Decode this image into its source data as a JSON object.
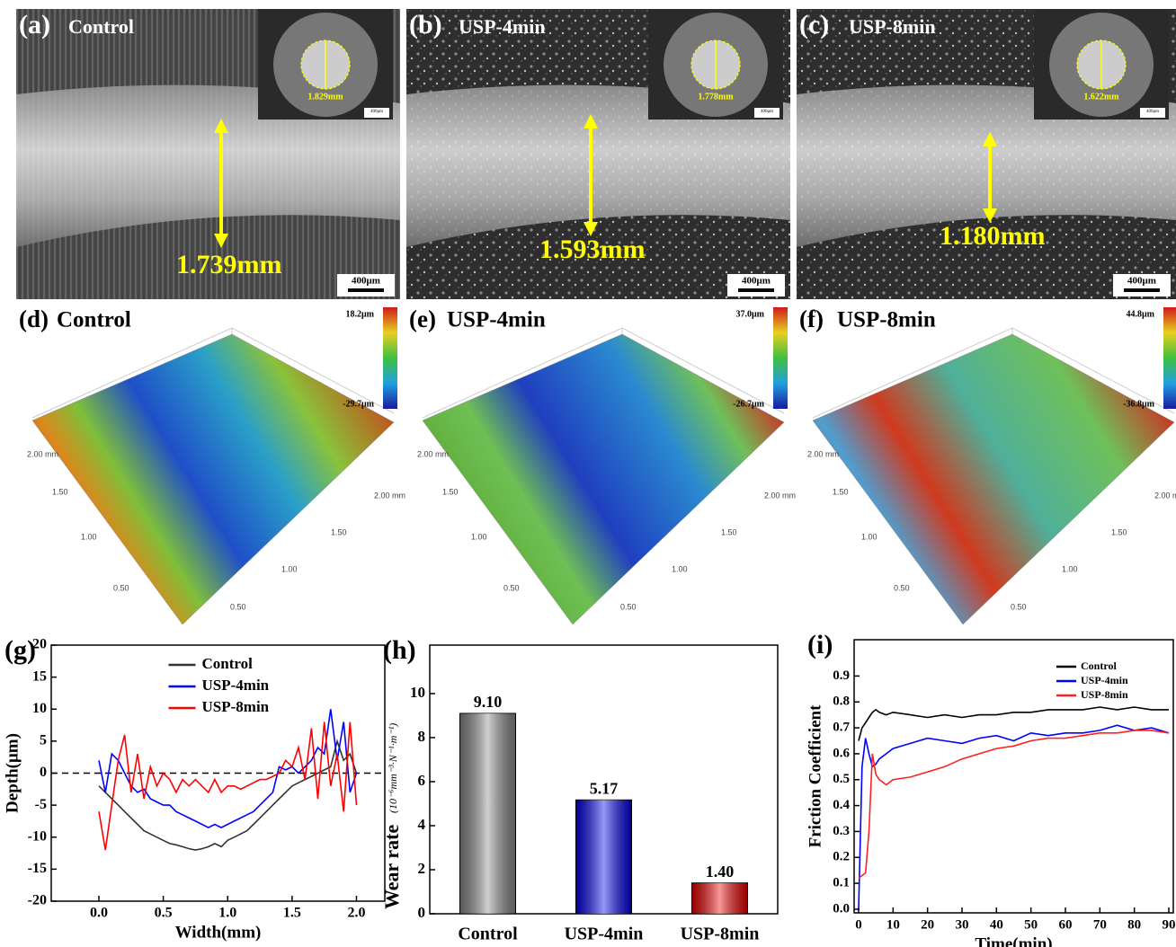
{
  "micrographs": [
    {
      "label": "(a)",
      "name": "Control",
      "inset_diameter": "1.829mm",
      "wear_width": "1.739mm",
      "scale_bar": "400μm"
    },
    {
      "label": "(b)",
      "name": "USP-4min",
      "inset_diameter": "1.778mm",
      "wear_width": "1.593mm",
      "scale_bar": "400μm"
    },
    {
      "label": "(c)",
      "name": "USP-8min",
      "inset_diameter": "1.622mm",
      "wear_width": "1.180mm",
      "scale_bar": "400μm"
    }
  ],
  "surfaces": [
    {
      "label": "(d)",
      "name": "Control",
      "z_max": "18.2μm",
      "z_min": "-29.7μm"
    },
    {
      "label": "(e)",
      "name": "USP-4min",
      "z_max": "37.0μm",
      "z_min": "-26.7μm"
    },
    {
      "label": "(f)",
      "name": "USP-8min",
      "z_max": "44.8μm",
      "z_min": "-36.8μm"
    }
  ],
  "surface_axis": {
    "y_labels": [
      "2.00 mm",
      "1.50",
      "1.00",
      "0.50"
    ],
    "x_labels": [
      "0.50",
      "1.00",
      "1.50",
      "2.00 mm"
    ]
  },
  "chart_data": [
    {
      "type": "line",
      "panel_label": "(g)",
      "x_label": "Width(mm)",
      "y_label": "Depth(μm)",
      "x": [
        0,
        0.05,
        0.1,
        0.15,
        0.2,
        0.25,
        0.3,
        0.35,
        0.4,
        0.45,
        0.5,
        0.55,
        0.6,
        0.65,
        0.7,
        0.75,
        0.8,
        0.85,
        0.9,
        0.95,
        1.0,
        1.05,
        1.1,
        1.15,
        1.2,
        1.25,
        1.3,
        1.35,
        1.4,
        1.45,
        1.5,
        1.55,
        1.6,
        1.65,
        1.7,
        1.75,
        1.8,
        1.85,
        1.9,
        1.95,
        2.0
      ],
      "series": [
        {
          "name": "Control",
          "color": "#333333",
          "values": [
            -2,
            -3,
            -4,
            -5,
            -6,
            -7,
            -8,
            -9,
            -9.5,
            -10,
            -10.5,
            -11,
            -11.2,
            -11.5,
            -11.8,
            -12,
            -11.8,
            -11.5,
            -11,
            -11.5,
            -10.5,
            -10,
            -9.5,
            -9,
            -8,
            -7,
            -6,
            -5,
            -4,
            -3,
            -2,
            -1.5,
            -1,
            -0.5,
            0,
            0.5,
            1,
            5,
            2,
            3,
            0
          ]
        },
        {
          "name": "USP-4min",
          "color": "#0000ff",
          "values": [
            2,
            -3,
            3,
            2,
            0,
            -2,
            -3,
            -2.5,
            -4,
            -4.5,
            -5,
            -5,
            -6,
            -6.5,
            -7,
            -7.5,
            -8,
            -8.5,
            -8,
            -8.5,
            -8,
            -7.5,
            -7,
            -6.5,
            -6,
            -5,
            -4,
            -3,
            1,
            0.5,
            1,
            0,
            1,
            2,
            4,
            3,
            10,
            2,
            8,
            -3,
            0
          ]
        },
        {
          "name": "USP-8min",
          "color": "#ff0000",
          "values": [
            -6,
            -12,
            -5,
            2,
            6,
            -3,
            3,
            -4,
            1,
            -2,
            0,
            -1,
            -3,
            -1,
            -2,
            -1,
            -2,
            -3,
            -1,
            -3,
            -2,
            -2,
            -2.5,
            -2,
            -1.5,
            -1,
            -1,
            -0.5,
            0,
            2,
            1,
            4,
            -1,
            7,
            -4,
            8,
            -2,
            3,
            -6,
            8,
            -5
          ]
        }
      ],
      "xlim": [
        -0.37,
        2.22
      ],
      "xticks": [
        {
          "value": 0,
          "label": "0.0"
        },
        0.5,
        {
          "value": 1,
          "label": "1.0"
        },
        1.5,
        {
          "value": 2,
          "label": "2.0"
        }
      ],
      "ylim": [
        -20,
        20
      ],
      "yticks": [
        -20,
        -15,
        -10,
        -5,
        0,
        5,
        10,
        15,
        20
      ],
      "reference_line": 0,
      "legend": "upper center"
    },
    {
      "type": "bar",
      "panel_label": "(h)",
      "y_label": "Wear rate",
      "y_unit": "(10⁻⁶mm⁻³·N⁻¹·m⁻¹)",
      "categories": [
        "Control",
        "USP-4min",
        "USP-8min"
      ],
      "values": [
        9.1,
        5.17,
        1.4
      ],
      "value_labels": [
        "9.10",
        "5.17",
        "1.40"
      ],
      "colors": [
        "#8a8a8a",
        "#0000ee",
        "#ee0000"
      ],
      "ylim": [
        0,
        12.2
      ],
      "yticks": [
        0,
        2,
        4,
        6,
        8,
        10
      ]
    },
    {
      "type": "line",
      "panel_label": "(i)",
      "x_label": "Time(min)",
      "y_label": "Friction Coefficient",
      "x": [
        0,
        1,
        2,
        3,
        4,
        5,
        6,
        8,
        10,
        15,
        20,
        25,
        30,
        35,
        40,
        45,
        50,
        55,
        60,
        65,
        70,
        75,
        80,
        85,
        90
      ],
      "series": [
        {
          "name": "Control",
          "color": "#000000",
          "values": [
            0.65,
            0.7,
            0.72,
            0.74,
            0.76,
            0.77,
            0.76,
            0.75,
            0.76,
            0.75,
            0.74,
            0.75,
            0.74,
            0.75,
            0.75,
            0.76,
            0.76,
            0.77,
            0.77,
            0.77,
            0.78,
            0.77,
            0.78,
            0.77,
            0.77
          ]
        },
        {
          "name": "USP-4min",
          "color": "#0000ff",
          "values": [
            0,
            0.55,
            0.66,
            0.6,
            0.55,
            0.56,
            0.58,
            0.6,
            0.62,
            0.64,
            0.66,
            0.65,
            0.64,
            0.66,
            0.67,
            0.65,
            0.68,
            0.67,
            0.68,
            0.68,
            0.69,
            0.71,
            0.69,
            0.7,
            0.68
          ]
        },
        {
          "name": "USP-8min",
          "color": "#ff2020",
          "values": [
            0.12,
            0.13,
            0.14,
            0.3,
            0.6,
            0.52,
            0.5,
            0.48,
            0.5,
            0.51,
            0.53,
            0.55,
            0.58,
            0.6,
            0.62,
            0.63,
            0.65,
            0.66,
            0.66,
            0.67,
            0.68,
            0.68,
            0.69,
            0.69,
            0.68
          ]
        }
      ],
      "xlim": [
        -1.3,
        91.3
      ],
      "xticks": [
        0,
        10,
        20,
        30,
        40,
        50,
        60,
        70,
        80,
        90
      ],
      "ylim": [
        -0.014,
        1.04
      ],
      "yticks": [
        {
          "value": 0,
          "label": "0.0"
        },
        0.1,
        0.2,
        0.3,
        0.4,
        0.5,
        0.6,
        0.7,
        0.8,
        0.9
      ],
      "legend": "upper right"
    }
  ]
}
